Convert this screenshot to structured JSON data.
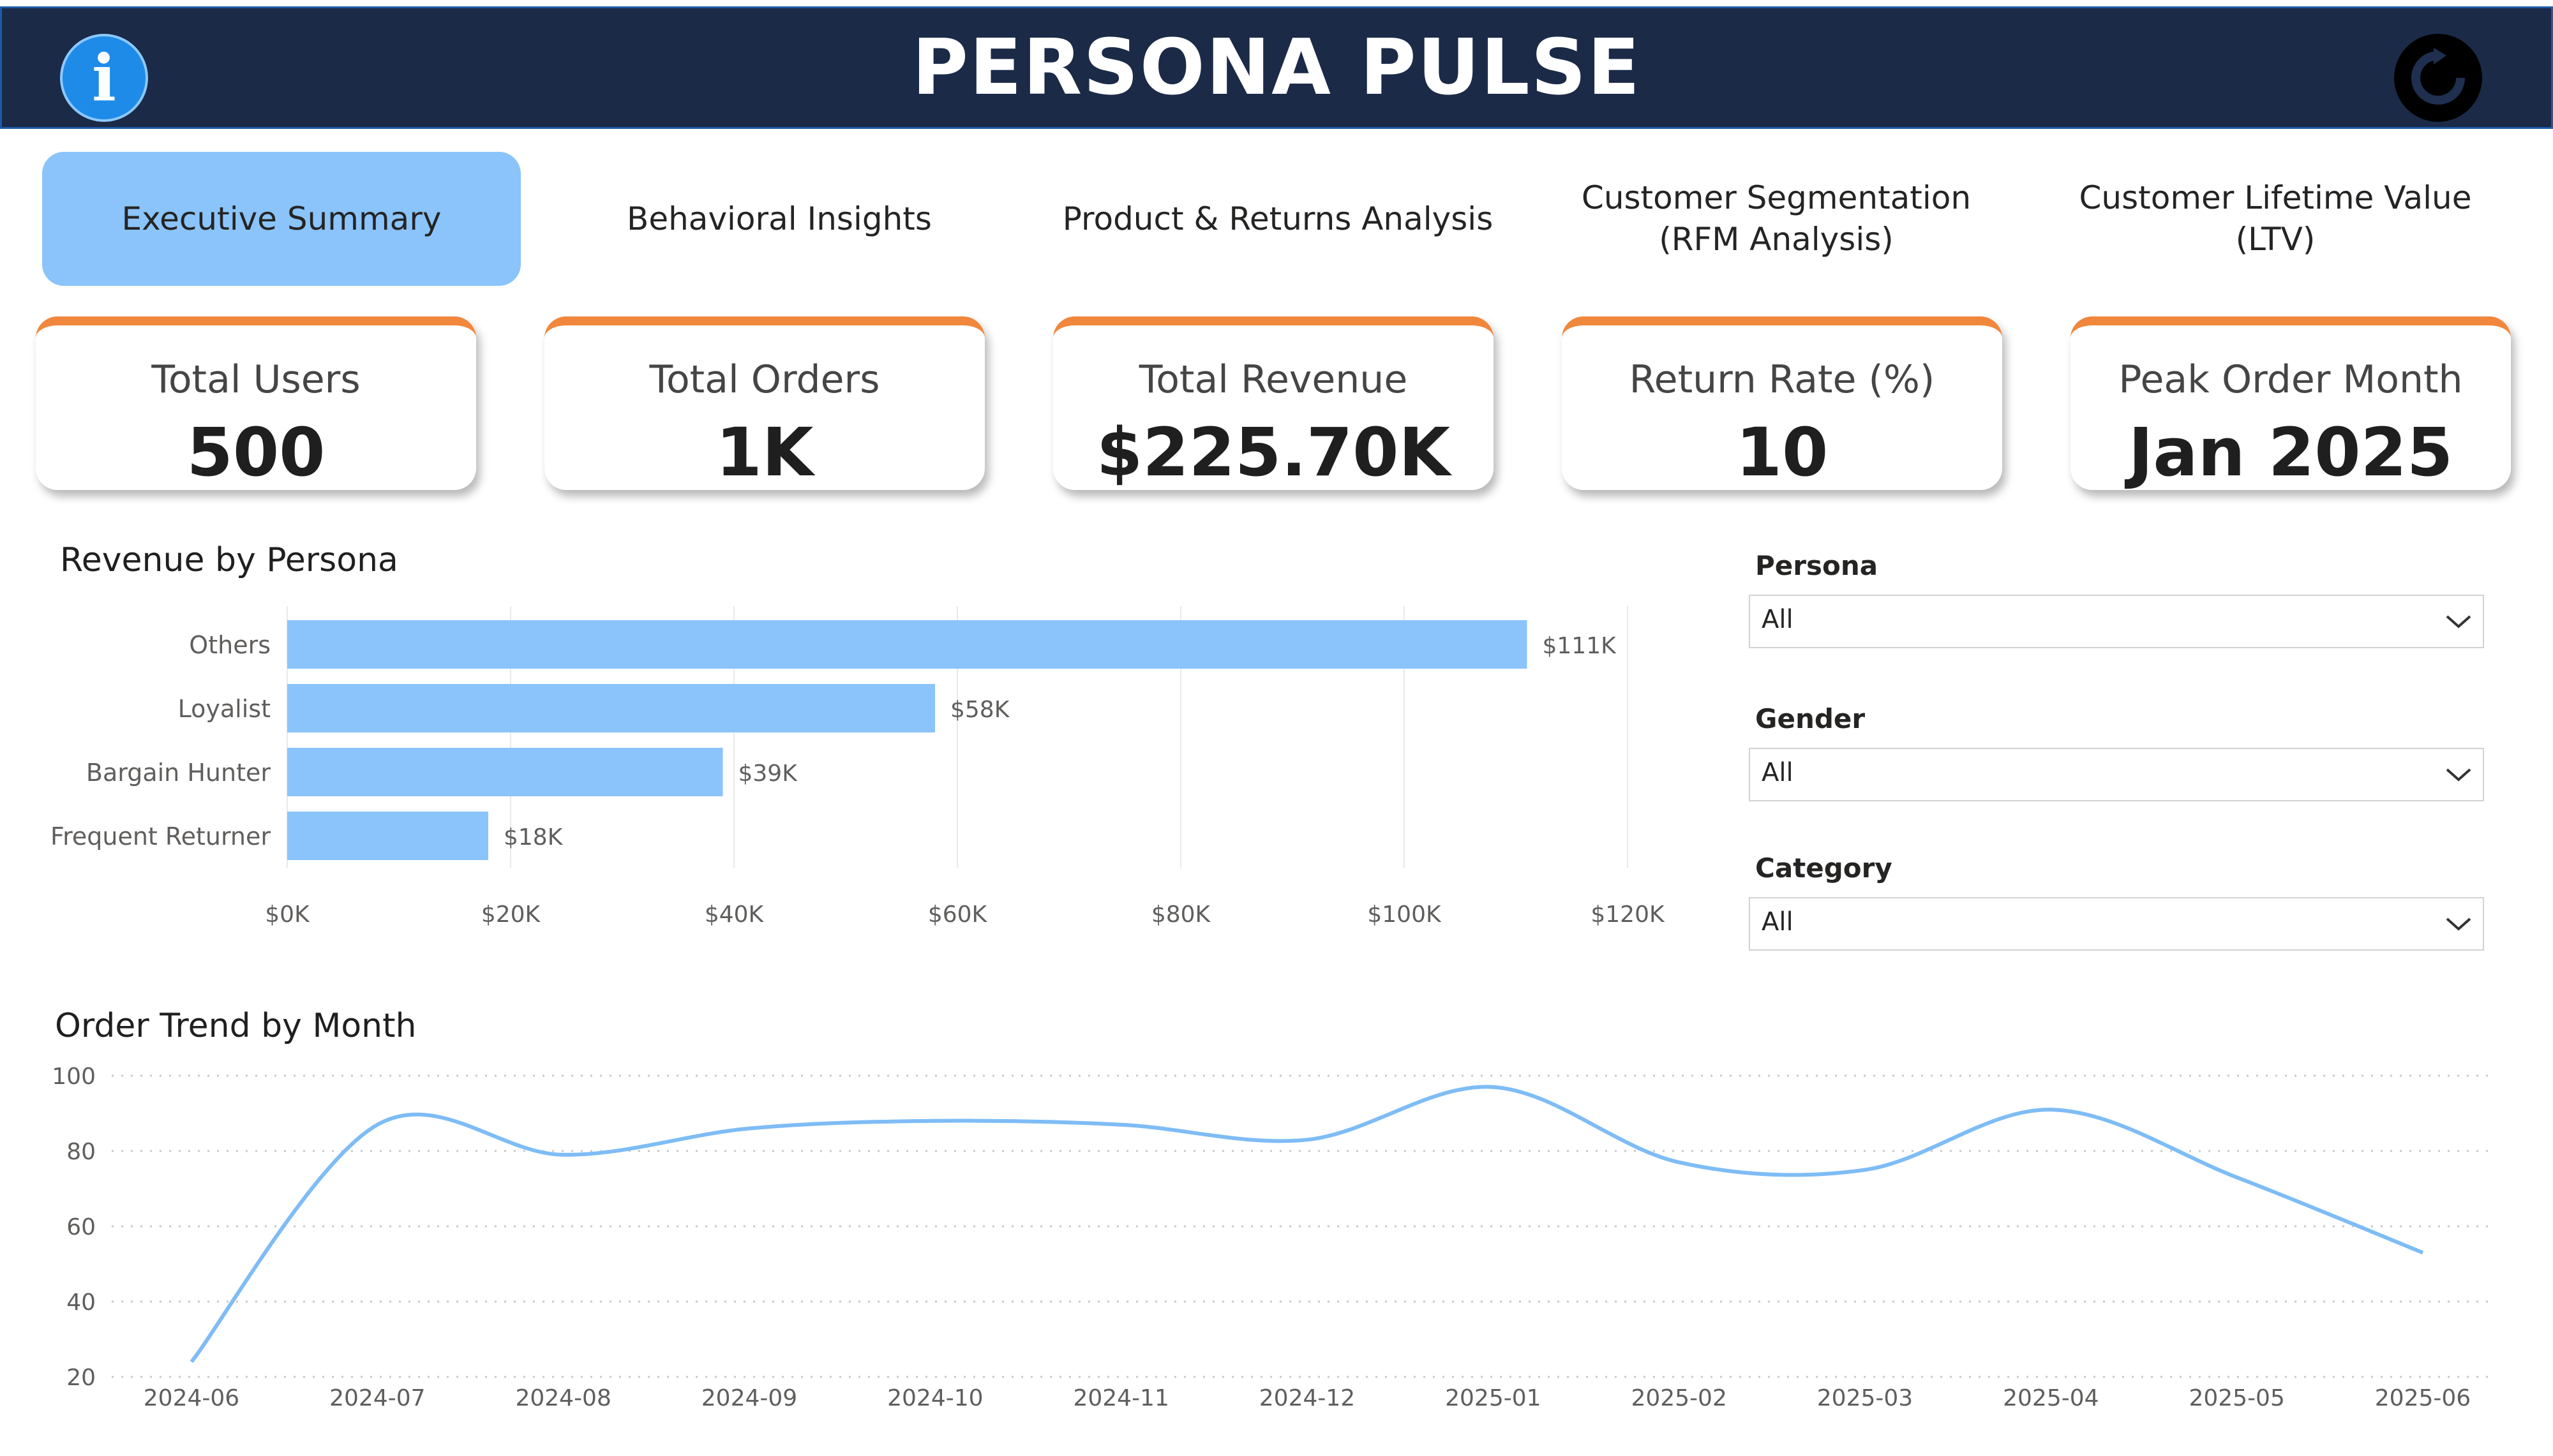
{
  "header": {
    "title": "PERSONA PULSE",
    "info_icon": "info-icon",
    "reset_icon": "reset-icon",
    "background": "#1b2a47"
  },
  "tabs": [
    {
      "label": "Executive Summary",
      "active": true
    },
    {
      "label": "Behavioral Insights",
      "active": false
    },
    {
      "label": "Product & Returns Analysis",
      "active": false
    },
    {
      "label": "Customer Segmentation (RFM Analysis)",
      "active": false
    },
    {
      "label": "Customer Lifetime Value (LTV)",
      "active": false
    }
  ],
  "kpis": [
    {
      "label": "Total Users",
      "value": "500"
    },
    {
      "label": "Total Orders",
      "value": "1K"
    },
    {
      "label": "Total Revenue",
      "value": "$225.70K"
    },
    {
      "label": "Return Rate (%)",
      "value": "10"
    },
    {
      "label": "Peak Order Month",
      "value": "Jan 2025"
    }
  ],
  "slicers": [
    {
      "label": "Persona",
      "value": "All"
    },
    {
      "label": "Gender",
      "value": "All"
    },
    {
      "label": "Category",
      "value": "All"
    }
  ],
  "colors": {
    "accent": "#8ac4fb",
    "bar": "#8ac4fb",
    "line": "#7ebcf5",
    "kpi_border": "#f0873c"
  },
  "chart_data": [
    {
      "type": "bar",
      "orientation": "horizontal",
      "title": "Revenue by Persona",
      "categories": [
        "Others",
        "Loyalist",
        "Bargain Hunter",
        "Frequent Returner"
      ],
      "values": [
        111,
        58,
        39,
        18
      ],
      "value_unit": "$K",
      "data_labels": [
        "$111K",
        "$58K",
        "$39K",
        "$18K"
      ],
      "xlim": [
        0,
        120
      ],
      "xticks": [
        "$0K",
        "$20K",
        "$40K",
        "$60K",
        "$80K",
        "$100K",
        "$120K"
      ],
      "grid": true
    },
    {
      "type": "line",
      "title": "Order Trend by Month",
      "x": [
        "2024-06",
        "2024-07",
        "2024-08",
        "2024-09",
        "2024-10",
        "2024-11",
        "2024-12",
        "2025-01",
        "2025-02",
        "2025-03",
        "2025-04",
        "2025-05",
        "2025-06"
      ],
      "values": [
        24,
        87,
        79,
        86,
        88,
        87,
        83,
        97,
        77,
        75,
        91,
        73,
        53
      ],
      "ylim": [
        20,
        100
      ],
      "yticks": [
        "20",
        "40",
        "60",
        "80",
        "100"
      ],
      "grid": true
    }
  ]
}
